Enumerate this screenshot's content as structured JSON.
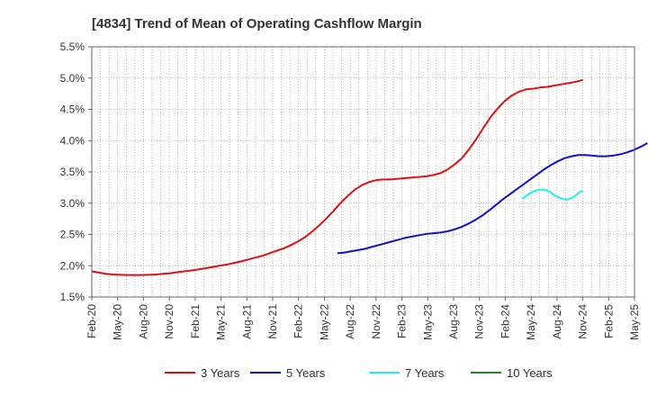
{
  "chart_data": {
    "type": "line",
    "title": "[4834]  Trend of Mean of Operating Cashflow Margin",
    "xlabel": "",
    "ylabel": "",
    "ylim": [
      1.5,
      5.5
    ],
    "yticks": [
      "5.5%",
      "5.0%",
      "4.5%",
      "4.0%",
      "3.5%",
      "3.0%",
      "2.5%",
      "2.0%",
      "1.5%"
    ],
    "ytick_values": [
      5.5,
      5.0,
      4.5,
      4.0,
      3.5,
      3.0,
      2.5,
      2.0,
      1.5
    ],
    "xticks": [
      "Feb-20",
      "May-20",
      "Aug-20",
      "Nov-20",
      "Feb-21",
      "May-21",
      "Aug-21",
      "Nov-21",
      "Feb-22",
      "May-22",
      "Aug-22",
      "Nov-22",
      "Feb-23",
      "May-23",
      "Aug-23",
      "Nov-23",
      "Feb-24",
      "May-24",
      "Aug-24",
      "Nov-24",
      "Feb-25",
      "May-25"
    ],
    "x_months_total": 63,
    "grid": true,
    "legend_position": "bottom",
    "series": [
      {
        "name": "3 Years",
        "color": "#dd1111",
        "start_month": 0,
        "values": [
          1.91,
          1.89,
          1.87,
          1.86,
          1.855,
          1.85,
          1.85,
          1.85,
          1.855,
          1.86,
          1.87,
          1.88,
          1.895,
          1.91,
          1.925,
          1.94,
          1.96,
          1.98,
          2.0,
          2.02,
          2.045,
          2.07,
          2.1,
          2.13,
          2.16,
          2.2,
          2.24,
          2.28,
          2.33,
          2.39,
          2.46,
          2.55,
          2.65,
          2.76,
          2.88,
          3.01,
          3.12,
          3.22,
          3.29,
          3.34,
          3.37,
          3.38,
          3.38,
          3.39,
          3.4,
          3.41,
          3.42,
          3.43,
          3.45,
          3.48,
          3.54,
          3.62,
          3.72,
          3.86,
          4.02,
          4.2,
          4.37,
          4.51,
          4.63,
          4.72,
          4.78,
          4.82,
          4.83,
          4.85,
          4.86,
          4.88,
          4.9,
          4.92,
          4.94,
          4.97
        ]
      },
      {
        "name": "5 Years",
        "color": "#1111cc",
        "start_month": 57,
        "values": [
          2.2,
          2.21,
          2.23,
          2.25,
          2.27,
          2.3,
          2.33,
          2.36,
          2.39,
          2.42,
          2.45,
          2.47,
          2.49,
          2.51,
          2.52,
          2.53,
          2.55,
          2.58,
          2.62,
          2.67,
          2.73,
          2.8,
          2.88,
          2.97,
          3.06,
          3.14,
          3.22,
          3.3,
          3.38,
          3.46,
          3.54,
          3.61,
          3.67,
          3.72,
          3.75,
          3.77,
          3.77,
          3.76,
          3.75,
          3.75,
          3.76,
          3.78,
          3.81,
          3.85,
          3.9,
          3.96
        ]
      },
      {
        "name": "7 Years",
        "color": "#22eeee",
        "start_month": 100,
        "values": [
          3.07,
          3.12,
          3.16,
          3.19,
          3.21,
          3.22,
          3.21,
          3.19,
          3.15,
          3.11,
          3.08,
          3.06,
          3.06,
          3.08,
          3.12,
          3.17,
          3.2
        ]
      },
      {
        "name": "10 Years",
        "color": "#228822",
        "start_month": null,
        "values": []
      }
    ]
  }
}
